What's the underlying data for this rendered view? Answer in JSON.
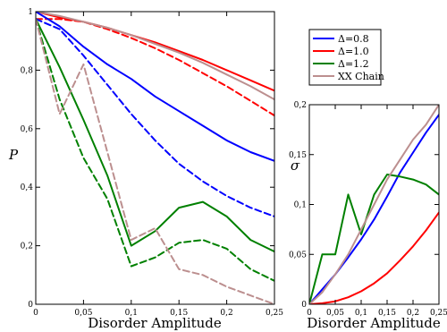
{
  "chart_data": [
    {
      "type": "line",
      "title": "",
      "xlabel": "Disorder Amplitude",
      "ylabel": "P",
      "xlim": [
        0,
        0.25
      ],
      "ylim": [
        0,
        1
      ],
      "x_ticks": [
        "0",
        "0,05",
        "0,1",
        "0,15",
        "0,2",
        "0,25"
      ],
      "y_ticks": [
        "0",
        "0,2",
        "0,4",
        "0,6",
        "0,8",
        "1"
      ],
      "x_tick_values": [
        0,
        0.05,
        0.1,
        0.15,
        0.2,
        0.25
      ],
      "y_tick_values": [
        0,
        0.2,
        0.4,
        0.6,
        0.8,
        1.0
      ],
      "grid": false,
      "x": [
        0,
        0.025,
        0.05,
        0.075,
        0.1,
        0.125,
        0.15,
        0.175,
        0.2,
        0.225,
        0.25
      ],
      "series": [
        {
          "color": "#ff0000",
          "style": "solid",
          "values": [
            1.0,
            0.98,
            0.965,
            0.945,
            0.92,
            0.895,
            0.865,
            0.835,
            0.8,
            0.765,
            0.73
          ]
        },
        {
          "color": "#ff0000",
          "style": "dashed",
          "values": [
            0.975,
            0.975,
            0.965,
            0.94,
            0.91,
            0.875,
            0.835,
            0.79,
            0.745,
            0.695,
            0.645
          ]
        },
        {
          "color": "#bc8f8f",
          "style": "solid",
          "values": [
            1.0,
            0.985,
            0.965,
            0.945,
            0.92,
            0.89,
            0.86,
            0.825,
            0.785,
            0.745,
            0.7
          ]
        },
        {
          "color": "#0000ff",
          "style": "solid",
          "values": [
            1.0,
            0.95,
            0.88,
            0.82,
            0.77,
            0.71,
            0.66,
            0.61,
            0.56,
            0.52,
            0.49
          ]
        },
        {
          "color": "#0000ff",
          "style": "dashed",
          "values": [
            0.975,
            0.94,
            0.85,
            0.75,
            0.65,
            0.56,
            0.48,
            0.42,
            0.37,
            0.33,
            0.3
          ]
        },
        {
          "color": "#008000",
          "style": "solid",
          "values": [
            0.975,
            0.81,
            0.63,
            0.44,
            0.2,
            0.25,
            0.33,
            0.35,
            0.3,
            0.22,
            0.18
          ]
        },
        {
          "color": "#008000",
          "style": "dashed",
          "values": [
            0.975,
            0.7,
            0.5,
            0.36,
            0.13,
            0.16,
            0.21,
            0.22,
            0.19,
            0.12,
            0.08
          ]
        },
        {
          "color": "#bc8f8f",
          "style": "dashed",
          "values": [
            0.975,
            0.65,
            0.82,
            0.52,
            0.22,
            0.26,
            0.12,
            0.1,
            0.06,
            0.03,
            0.0
          ]
        }
      ]
    },
    {
      "type": "line",
      "title": "",
      "xlabel": "Disorder Amplitude",
      "ylabel": "σ",
      "xlim": [
        0,
        0.25
      ],
      "ylim": [
        0,
        0.2
      ],
      "x_ticks": [
        "0",
        "0,05",
        "0,1",
        "0,15",
        "0,2",
        "0,25"
      ],
      "y_ticks": [
        "0",
        "0,05",
        "0,1",
        "0,15",
        "0,2"
      ],
      "x_tick_values": [
        0,
        0.05,
        0.1,
        0.15,
        0.2,
        0.25
      ],
      "y_tick_values": [
        0,
        0.05,
        0.1,
        0.15,
        0.2
      ],
      "grid": false,
      "x": [
        0,
        0.025,
        0.05,
        0.075,
        0.1,
        0.125,
        0.15,
        0.175,
        0.2,
        0.225,
        0.25
      ],
      "series": [
        {
          "color": "#0000ff",
          "style": "solid",
          "values": [
            0.0,
            0.015,
            0.03,
            0.047,
            0.065,
            0.085,
            0.108,
            0.132,
            0.152,
            0.172,
            0.19
          ]
        },
        {
          "color": "#ff0000",
          "style": "solid",
          "values": [
            0.0,
            0.001,
            0.003,
            0.007,
            0.013,
            0.021,
            0.031,
            0.044,
            0.058,
            0.074,
            0.092
          ]
        },
        {
          "color": "#008000",
          "style": "solid",
          "values": [
            0.0,
            0.05,
            0.05,
            0.11,
            0.07,
            0.11,
            0.13,
            0.128,
            0.125,
            0.12,
            0.11
          ]
        },
        {
          "color": "#bc8f8f",
          "style": "solid",
          "values": [
            0.0,
            0.012,
            0.03,
            0.05,
            0.075,
            0.1,
            0.125,
            0.145,
            0.165,
            0.18,
            0.2
          ]
        }
      ]
    }
  ],
  "legend": {
    "placement": "top-right",
    "entries": [
      {
        "label": "Δ=0.8",
        "color": "#0000ff"
      },
      {
        "label": "Δ=1.0",
        "color": "#ff0000"
      },
      {
        "label": "Δ=1.2",
        "color": "#008000"
      },
      {
        "label": "XX Chain",
        "color": "#bc8f8f"
      }
    ]
  }
}
